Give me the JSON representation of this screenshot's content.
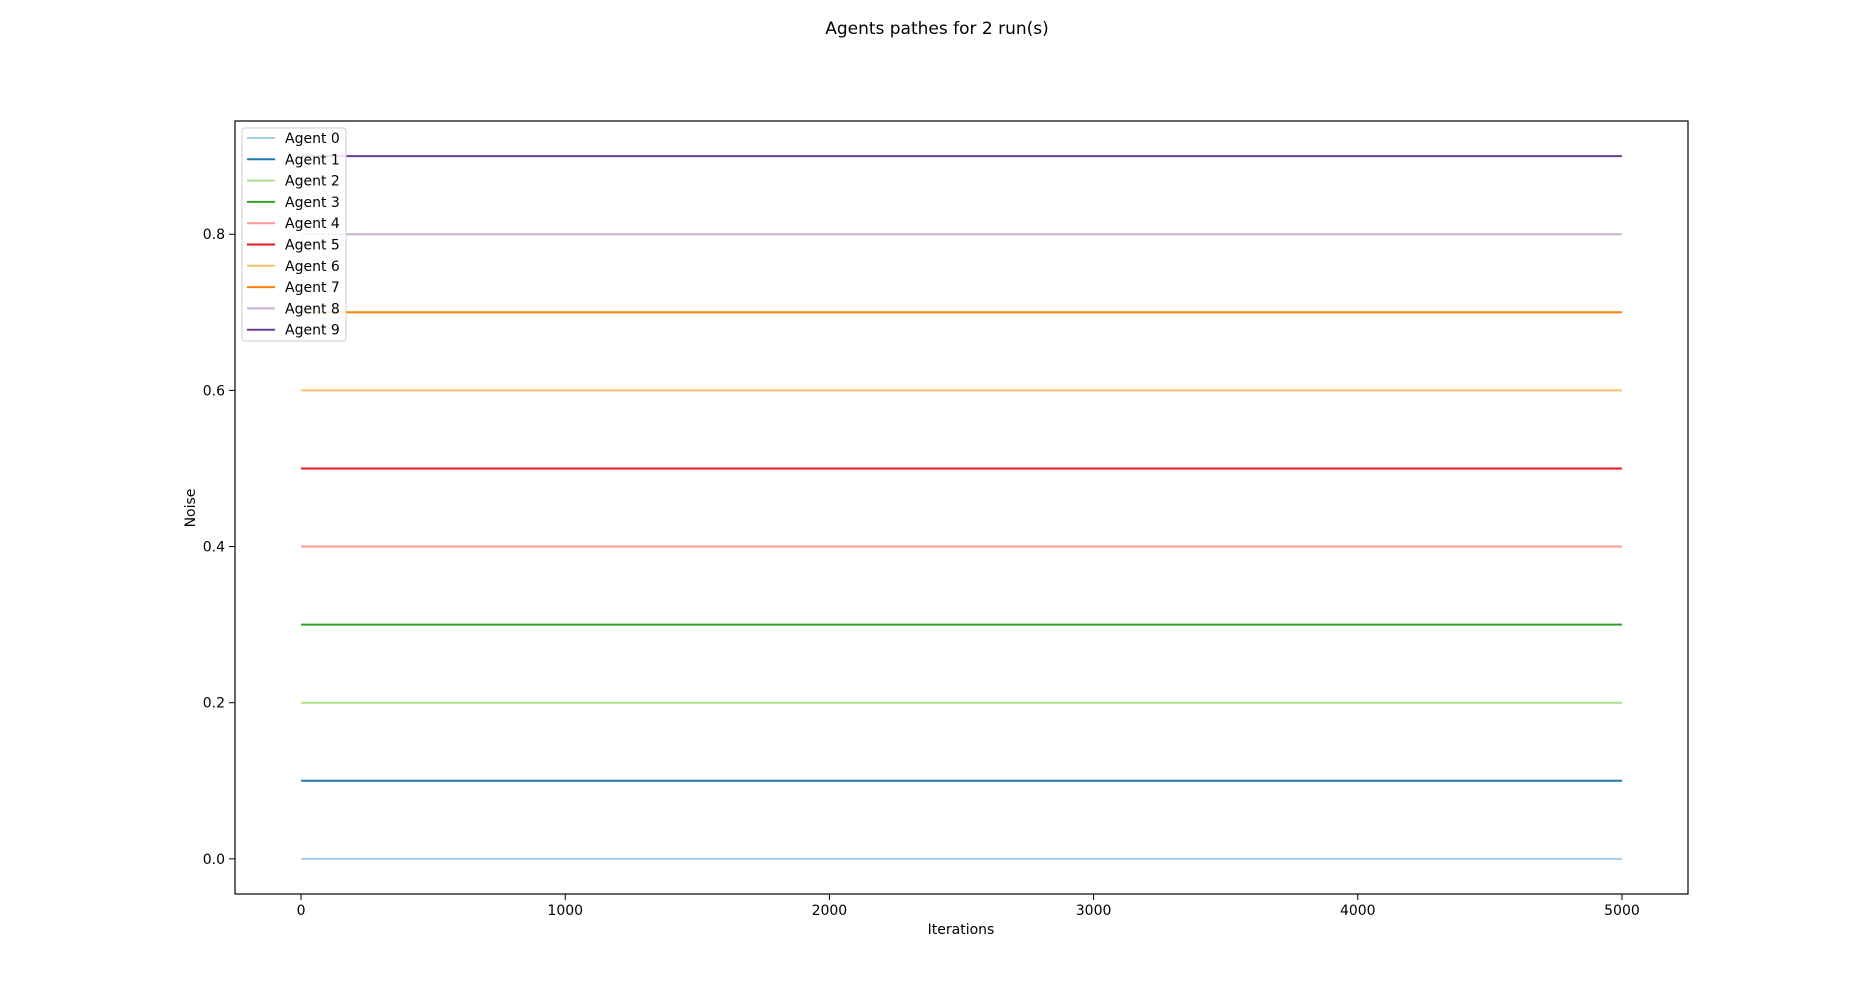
{
  "chart_data": {
    "type": "line",
    "title": "Agents pathes for 2 run(s)",
    "xlabel": "Iterations",
    "ylabel": "Noise",
    "xlim": [
      -250,
      5250
    ],
    "ylim": [
      -0.045,
      0.945
    ],
    "x_ticks": [
      0,
      1000,
      2000,
      3000,
      4000,
      5000
    ],
    "x_tick_labels": [
      "0",
      "1000",
      "2000",
      "3000",
      "4000",
      "5000"
    ],
    "y_ticks": [
      0.0,
      0.2,
      0.4,
      0.6,
      0.8
    ],
    "y_tick_labels": [
      "0.0",
      "0.2",
      "0.4",
      "0.6",
      "0.8"
    ],
    "grid": false,
    "legend_position": "top-left",
    "x": [
      0,
      5000
    ],
    "series": [
      {
        "name": "Agent 0",
        "color": "#a6cee3",
        "values": [
          0.0,
          0.0
        ]
      },
      {
        "name": "Agent 1",
        "color": "#1f78b4",
        "values": [
          0.1,
          0.1
        ]
      },
      {
        "name": "Agent 2",
        "color": "#b2df8a",
        "values": [
          0.2,
          0.2
        ]
      },
      {
        "name": "Agent 3",
        "color": "#33a02c",
        "values": [
          0.3,
          0.3
        ]
      },
      {
        "name": "Agent 4",
        "color": "#fb9a99",
        "values": [
          0.4,
          0.4
        ]
      },
      {
        "name": "Agent 5",
        "color": "#e31a1c",
        "values": [
          0.5,
          0.5
        ]
      },
      {
        "name": "Agent 6",
        "color": "#fdbf6f",
        "values": [
          0.6,
          0.6
        ]
      },
      {
        "name": "Agent 7",
        "color": "#ff7f00",
        "values": [
          0.7,
          0.7
        ]
      },
      {
        "name": "Agent 8",
        "color": "#cab2d6",
        "values": [
          0.8,
          0.8
        ]
      },
      {
        "name": "Agent 9",
        "color": "#6a3d9a",
        "values": [
          0.9,
          0.9
        ]
      }
    ]
  }
}
